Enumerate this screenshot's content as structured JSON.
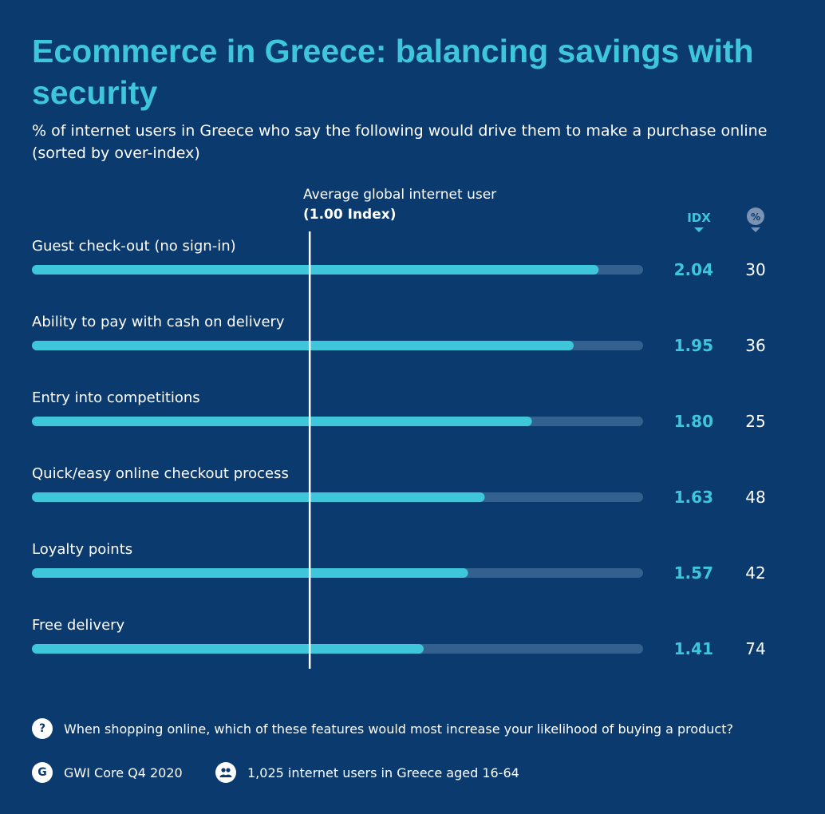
{
  "title": "Ecommerce in Greece: balancing savings with security",
  "subtitle": "% of internet users in Greece who say the following would drive them to make a purchase online (sorted by over-index)",
  "reference": {
    "label": "Average global internet user",
    "value_label": "(1.00 Index)"
  },
  "columns": {
    "idx": "IDX",
    "pct": "%"
  },
  "colors": {
    "background": "#0b3a6e",
    "accent": "#3ec6db",
    "track": "#33608f",
    "white": "#ffffff"
  },
  "chart_data": {
    "type": "bar",
    "orientation": "horizontal",
    "categories": [
      "Guest check-out (no sign-in)",
      "Ability to pay with cash on delivery",
      "Entry into competitions",
      "Quick/easy online checkout process",
      "Loyalty points",
      "Free delivery"
    ],
    "series": [
      {
        "values": [
          2.04,
          1.95,
          1.8,
          1.63,
          1.57,
          1.41
        ]
      },
      {
        "values": [
          30,
          36,
          25,
          48,
          42,
          74
        ]
      }
    ],
    "idx_labels": [
      "2.04",
      "1.95",
      "1.80",
      "1.63",
      "1.57",
      "1.41"
    ],
    "pct_labels": [
      "30",
      "36",
      "25",
      "48",
      "42",
      "74"
    ],
    "reference_line": 1.0,
    "xlim": [
      0,
      2.2
    ]
  },
  "footer": {
    "question_icon": "question-icon",
    "question": "When shopping online, which of these features would most increase your likelihood of buying a product?",
    "source_icon": "gwi-logo-icon",
    "source": "GWI Core Q4 2020",
    "sample_icon": "people-icon",
    "sample": "1,025 internet users in Greece aged 16-64"
  }
}
